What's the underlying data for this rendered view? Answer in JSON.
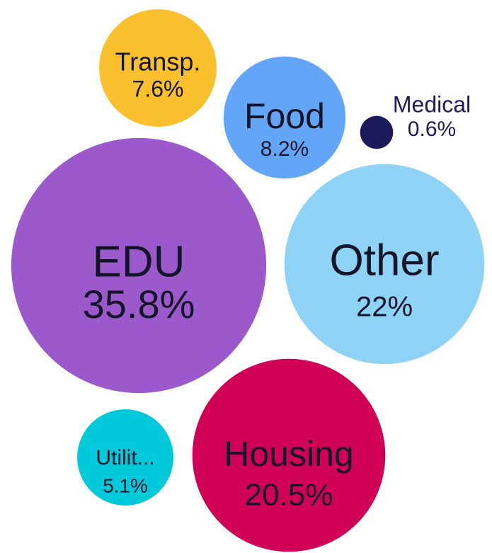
{
  "chart_data": {
    "type": "packed-bubble",
    "categories": [
      "EDU",
      "Other",
      "Housing",
      "Food",
      "Transp.",
      "Utilit...",
      "Medical"
    ],
    "values": [
      35.8,
      22,
      20.5,
      8.2,
      7.6,
      5.1,
      0.6
    ],
    "value_labels": [
      "35.8%",
      "22%",
      "20.5%",
      "8.2%",
      "7.6%",
      "5.1%",
      "0.6%"
    ],
    "colors": [
      "#9b59cb",
      "#8ed3f5",
      "#d10057",
      "#63a6f7",
      "#fbc02d",
      "#00c9da",
      "#1b1a5a"
    ]
  }
}
